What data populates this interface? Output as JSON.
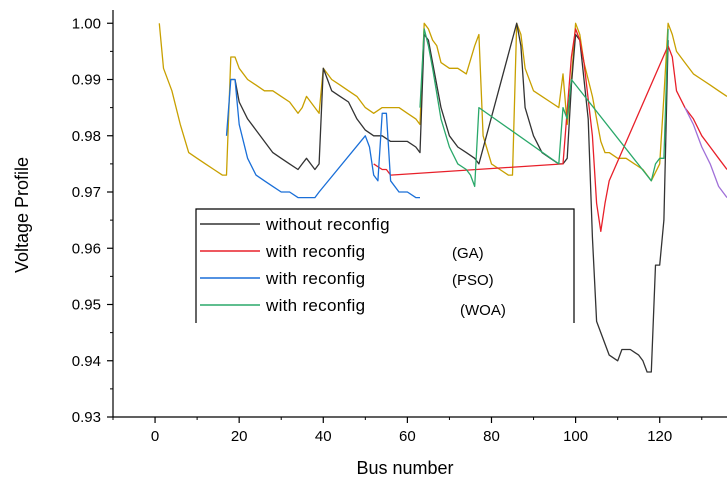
{
  "chart_data": {
    "type": "line",
    "xlabel": "Bus number",
    "ylabel": "Voltage Profile",
    "xlim": [
      -10,
      136
    ],
    "ylim": [
      0.93,
      1.002
    ],
    "x_ticks": [
      0,
      20,
      40,
      60,
      80,
      100,
      120
    ],
    "y_ticks": [
      0.93,
      0.94,
      0.95,
      0.96,
      0.97,
      0.98,
      0.99,
      1.0
    ],
    "y_tick_labels": [
      "0.93",
      "0.94",
      "0.95",
      "0.96",
      "0.97",
      "0.98",
      "0.99",
      "1.00"
    ],
    "grid": false,
    "legend_position": "center-left",
    "series": [
      {
        "name": "",
        "color": "#c8a000",
        "points": [
          [
            1,
            1.0
          ],
          [
            2,
            0.992
          ],
          [
            4,
            0.988
          ],
          [
            6,
            0.982
          ],
          [
            8,
            0.977
          ],
          [
            10,
            0.976
          ],
          [
            12,
            0.975
          ],
          [
            14,
            0.974
          ],
          [
            16,
            0.973
          ],
          [
            17,
            0.973
          ],
          [
            18,
            0.994
          ],
          [
            19,
            0.994
          ],
          [
            20,
            0.992
          ],
          [
            22,
            0.99
          ],
          [
            24,
            0.989
          ],
          [
            26,
            0.988
          ],
          [
            28,
            0.988
          ],
          [
            30,
            0.987
          ],
          [
            32,
            0.986
          ],
          [
            33,
            0.985
          ],
          [
            34,
            0.984
          ],
          [
            35,
            0.985
          ],
          [
            36,
            0.987
          ],
          [
            37,
            0.986
          ],
          [
            38,
            0.985
          ],
          [
            39,
            0.984
          ],
          [
            40,
            0.992
          ],
          [
            41,
            0.991
          ],
          [
            42,
            0.99
          ],
          [
            44,
            0.989
          ],
          [
            46,
            0.988
          ],
          [
            48,
            0.987
          ],
          [
            50,
            0.985
          ],
          [
            52,
            0.984
          ],
          [
            54,
            0.985
          ],
          [
            56,
            0.985
          ],
          [
            58,
            0.985
          ],
          [
            60,
            0.984
          ],
          [
            62,
            0.983
          ],
          [
            63,
            0.982
          ],
          [
            64,
            1.0
          ],
          [
            65,
            0.999
          ],
          [
            66,
            0.997
          ],
          [
            67,
            0.996
          ],
          [
            68,
            0.993
          ],
          [
            70,
            0.992
          ],
          [
            72,
            0.992
          ],
          [
            74,
            0.991
          ],
          [
            76,
            0.996
          ],
          [
            77,
            0.998
          ],
          [
            78,
            0.98
          ],
          [
            80,
            0.975
          ],
          [
            82,
            0.974
          ],
          [
            84,
            0.973
          ],
          [
            85,
            0.973
          ],
          [
            86,
            1.0
          ],
          [
            87,
            0.998
          ],
          [
            88,
            0.992
          ],
          [
            90,
            0.988
          ],
          [
            92,
            0.987
          ],
          [
            94,
            0.986
          ],
          [
            96,
            0.985
          ],
          [
            97,
            0.991
          ],
          [
            98,
            0.982
          ],
          [
            99,
            0.99
          ],
          [
            100,
            1.0
          ],
          [
            101,
            0.998
          ],
          [
            102,
            0.993
          ],
          [
            103,
            0.99
          ],
          [
            104,
            0.987
          ],
          [
            105,
            0.983
          ],
          [
            106,
            0.979
          ],
          [
            107,
            0.977
          ],
          [
            108,
            0.977
          ],
          [
            110,
            0.976
          ],
          [
            112,
            0.976
          ],
          [
            114,
            0.975
          ],
          [
            116,
            0.974
          ],
          [
            117,
            0.973
          ],
          [
            118,
            0.972
          ],
          [
            120,
            0.975
          ],
          [
            121,
            0.987
          ],
          [
            122,
            1.0
          ],
          [
            123,
            0.998
          ],
          [
            124,
            0.995
          ],
          [
            126,
            0.993
          ],
          [
            128,
            0.991
          ],
          [
            130,
            0.99
          ],
          [
            132,
            0.989
          ],
          [
            134,
            0.988
          ],
          [
            136,
            0.987
          ]
        ]
      },
      {
        "name": "without reconfig",
        "color": "#333333",
        "points": [
          [
            18,
            0.99
          ],
          [
            19,
            0.99
          ],
          [
            20,
            0.986
          ],
          [
            22,
            0.983
          ],
          [
            24,
            0.981
          ],
          [
            26,
            0.979
          ],
          [
            28,
            0.977
          ],
          [
            30,
            0.976
          ],
          [
            32,
            0.975
          ],
          [
            34,
            0.974
          ],
          [
            35,
            0.975
          ],
          [
            36,
            0.976
          ],
          [
            37,
            0.975
          ],
          [
            38,
            0.974
          ],
          [
            39,
            0.975
          ],
          [
            40,
            0.992
          ],
          [
            41,
            0.99
          ],
          [
            42,
            0.988
          ],
          [
            44,
            0.987
          ],
          [
            46,
            0.986
          ],
          [
            48,
            0.983
          ],
          [
            50,
            0.981
          ],
          [
            52,
            0.98
          ],
          [
            54,
            0.98
          ],
          [
            56,
            0.979
          ],
          [
            58,
            0.979
          ],
          [
            60,
            0.979
          ],
          [
            62,
            0.978
          ],
          [
            63,
            0.977
          ],
          [
            64,
            0.998
          ],
          [
            65,
            0.997
          ],
          [
            66,
            0.993
          ],
          [
            68,
            0.985
          ],
          [
            70,
            0.98
          ],
          [
            72,
            0.978
          ],
          [
            74,
            0.977
          ],
          [
            76,
            0.976
          ],
          [
            77,
            0.975
          ],
          [
            86,
            1.0
          ],
          [
            87,
            0.996
          ],
          [
            88,
            0.985
          ],
          [
            90,
            0.98
          ],
          [
            92,
            0.977
          ],
          [
            94,
            0.976
          ],
          [
            96,
            0.975
          ],
          [
            97,
            0.975
          ],
          [
            98,
            0.976
          ],
          [
            99,
            0.989
          ],
          [
            100,
            0.998
          ],
          [
            101,
            0.997
          ],
          [
            102,
            0.99
          ],
          [
            103,
            0.983
          ],
          [
            104,
            0.962
          ],
          [
            105,
            0.947
          ],
          [
            106,
            0.945
          ],
          [
            108,
            0.941
          ],
          [
            110,
            0.94
          ],
          [
            111,
            0.942
          ],
          [
            113,
            0.942
          ],
          [
            115,
            0.941
          ],
          [
            116,
            0.94
          ],
          [
            117,
            0.938
          ],
          [
            118,
            0.938
          ],
          [
            119,
            0.957
          ],
          [
            120,
            0.957
          ],
          [
            121,
            0.965
          ],
          [
            122,
            0.997
          ]
        ]
      },
      {
        "name": "with reconfig (GA)",
        "color": "#e8202a",
        "points": [
          [
            52,
            0.975
          ],
          [
            54,
            0.974
          ],
          [
            55,
            0.974
          ],
          [
            56,
            0.973
          ],
          [
            97,
            0.975
          ],
          [
            99,
            0.994
          ],
          [
            100,
            0.999
          ],
          [
            101,
            0.997
          ],
          [
            102,
            0.993
          ],
          [
            104,
            0.98
          ],
          [
            105,
            0.968
          ],
          [
            106,
            0.963
          ],
          [
            107,
            0.968
          ],
          [
            108,
            0.972
          ],
          [
            122,
            0.996
          ],
          [
            123,
            0.994
          ],
          [
            124,
            0.988
          ],
          [
            126,
            0.985
          ],
          [
            128,
            0.983
          ],
          [
            130,
            0.98
          ],
          [
            132,
            0.978
          ],
          [
            134,
            0.976
          ],
          [
            136,
            0.974
          ]
        ]
      },
      {
        "name": "with reconfig (PSO)",
        "color": "#1a6fd8",
        "points": [
          [
            17,
            0.98
          ],
          [
            18,
            0.99
          ],
          [
            19,
            0.99
          ],
          [
            20,
            0.982
          ],
          [
            22,
            0.976
          ],
          [
            24,
            0.973
          ],
          [
            26,
            0.972
          ],
          [
            28,
            0.971
          ],
          [
            30,
            0.97
          ],
          [
            32,
            0.97
          ],
          [
            34,
            0.969
          ],
          [
            35,
            0.969
          ],
          [
            36,
            0.969
          ],
          [
            37,
            0.969
          ],
          [
            38,
            0.969
          ],
          [
            39,
            0.97
          ],
          [
            50,
            0.98
          ],
          [
            51,
            0.978
          ],
          [
            52,
            0.973
          ],
          [
            53,
            0.972
          ],
          [
            54,
            0.984
          ],
          [
            55,
            0.984
          ],
          [
            56,
            0.972
          ],
          [
            58,
            0.97
          ],
          [
            60,
            0.97
          ],
          [
            62,
            0.969
          ],
          [
            63,
            0.969
          ]
        ]
      },
      {
        "name": "with reconfig (WOA)",
        "color": "#2aa86a",
        "points": [
          [
            63,
            0.985
          ],
          [
            64,
            0.999
          ],
          [
            65,
            0.996
          ],
          [
            66,
            0.992
          ],
          [
            68,
            0.983
          ],
          [
            70,
            0.978
          ],
          [
            72,
            0.975
          ],
          [
            74,
            0.974
          ],
          [
            75,
            0.973
          ],
          [
            76,
            0.971
          ],
          [
            77,
            0.985
          ],
          [
            96,
            0.975
          ],
          [
            97,
            0.985
          ],
          [
            98,
            0.983
          ],
          [
            99,
            0.99
          ],
          [
            118,
            0.972
          ],
          [
            119,
            0.975
          ],
          [
            120,
            0.976
          ],
          [
            121,
            0.976
          ],
          [
            122,
            0.999
          ]
        ]
      },
      {
        "name": "",
        "color": "#a070d8",
        "points": [
          [
            126,
            0.985
          ],
          [
            128,
            0.982
          ],
          [
            130,
            0.978
          ],
          [
            132,
            0.975
          ],
          [
            134,
            0.971
          ],
          [
            136,
            0.969
          ]
        ]
      }
    ],
    "legend": {
      "entries": [
        {
          "label": "without reconfig",
          "note": "",
          "color": "#333333"
        },
        {
          "label": "with reconfig",
          "note": "(GA)",
          "color": "#e8202a"
        },
        {
          "label": "with reconfig",
          "note": "(PSO)",
          "color": "#1a6fd8"
        },
        {
          "label": "with reconfig",
          "note": "(WOA)",
          "color": "#2aa86a"
        }
      ]
    }
  }
}
